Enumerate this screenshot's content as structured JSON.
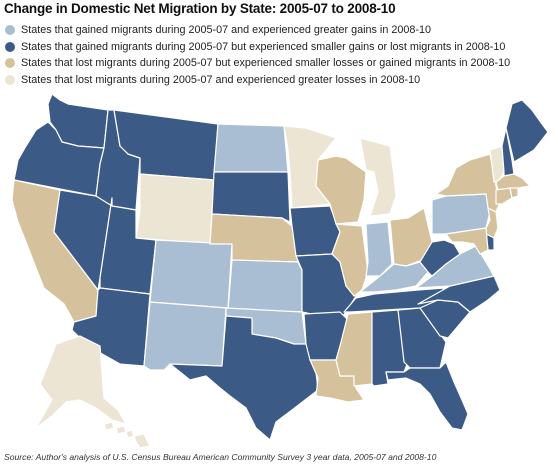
{
  "title": "Change in Domestic Net Migration by State: 2005-07 to 2008-10",
  "legend": [
    {
      "key": "A",
      "label": "States that gained migrants during 2005-07 and experienced greater gains in 2008-10",
      "color": "#a9bdd3"
    },
    {
      "key": "B",
      "label": "States that gained migrants during 2005-07 but experienced smaller gains or lost migrants in 2008-10",
      "color": "#3c5a86"
    },
    {
      "key": "C",
      "label": "States that lost migrants during 2005-07 but experienced smaller losses or gained migrants in 2008-10",
      "color": "#d5c29c"
    },
    {
      "key": "D",
      "label": "States that lost migrants during 2005-07 and experienced greater losses in 2008-10",
      "color": "#ede5d3"
    }
  ],
  "source": "Source:  Author's analysis of U.S. Census Bureau American Community Survey 3 year data, 2005-07 and 2008-10",
  "states": {
    "WA": "B",
    "OR": "B",
    "CA": "C",
    "NV": "B",
    "ID": "B",
    "MT": "B",
    "WY": "D",
    "UT": "B",
    "AZ": "B",
    "CO": "A",
    "NM": "A",
    "ND": "A",
    "SD": "B",
    "NE": "C",
    "KS": "A",
    "OK": "A",
    "TX": "B",
    "MN": "D",
    "IA": "B",
    "MO": "B",
    "AR": "B",
    "LA": "C",
    "WI": "C",
    "IL": "C",
    "MI": "D",
    "IN": "A",
    "OH": "C",
    "KY": "A",
    "TN": "B",
    "MS": "C",
    "AL": "B",
    "GA": "B",
    "FL": "B",
    "SC": "B",
    "NC": "B",
    "VA": "A",
    "WV": "B",
    "PA": "A",
    "NY": "C",
    "VT": "D",
    "NH": "B",
    "ME": "B",
    "MA": "C",
    "CT": "C",
    "RI": "C",
    "NJ": "C",
    "DE": "B",
    "MD": "C",
    "AK": "D",
    "HI": "D"
  }
}
